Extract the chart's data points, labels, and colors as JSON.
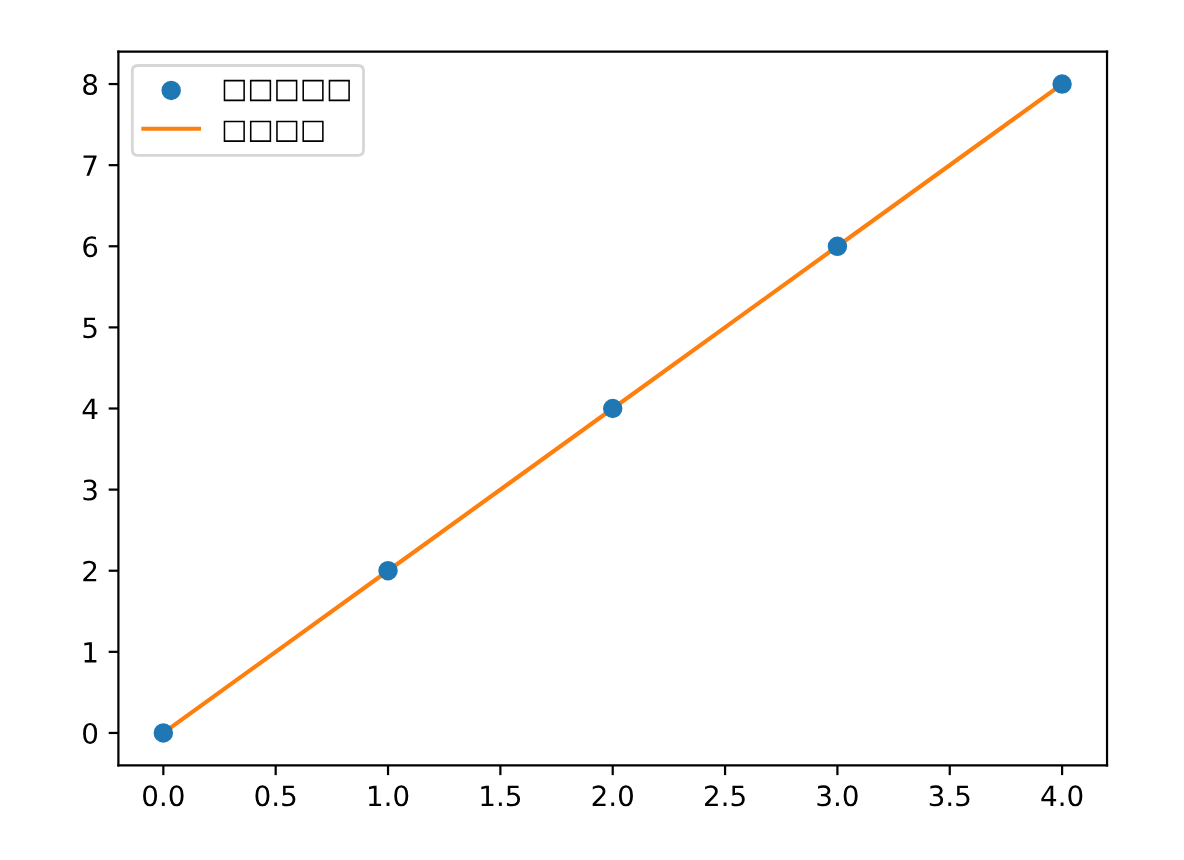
{
  "chart_data": {
    "type": "scatter",
    "x": [
      0,
      1,
      2,
      3,
      4
    ],
    "series": [
      {
        "name": "□□□□□",
        "color": "#1f77b4",
        "marker": "circle",
        "values": [
          0,
          2,
          4,
          6,
          8
        ]
      },
      {
        "name": "□□□□",
        "type": "line",
        "color": "#ff7f0e",
        "marker": "none",
        "line_style": "solid",
        "values": [
          0,
          2,
          4,
          6,
          8
        ]
      }
    ],
    "xlim": [
      -0.2,
      4.2
    ],
    "ylim": [
      -0.4,
      8.4
    ],
    "xticks": [
      {
        "value": 0,
        "label": "0.0"
      },
      {
        "value": 0.5,
        "label": "0.5"
      },
      {
        "value": 1,
        "label": "1.0"
      },
      {
        "value": 1.5,
        "label": "1.5"
      },
      {
        "value": 2,
        "label": "2.0"
      },
      {
        "value": 2.5,
        "label": "2.5"
      },
      {
        "value": 3,
        "label": "3.0"
      },
      {
        "value": 3.5,
        "label": "3.5"
      },
      {
        "value": 4,
        "label": "4.0"
      }
    ],
    "yticks": [
      0,
      1,
      2,
      3,
      4,
      5,
      6,
      7,
      8
    ],
    "grid": false,
    "legend": "top left"
  }
}
